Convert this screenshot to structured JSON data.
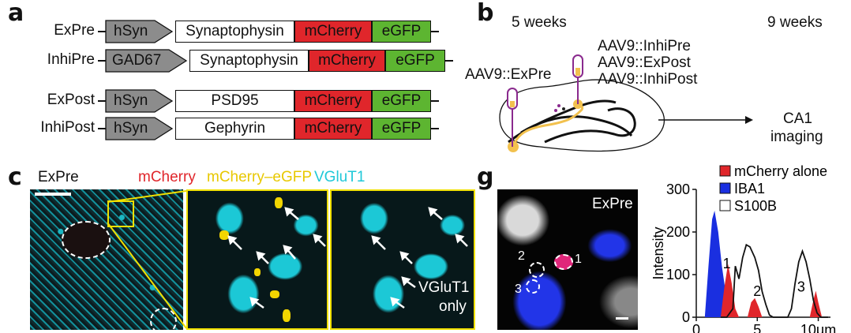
{
  "panel_a": {
    "label": "a",
    "rows": [
      {
        "name": "ExPre",
        "promoter": "hSyn",
        "protein": "Synaptophysin",
        "fp1": "mCherry",
        "fp2": "eGFP"
      },
      {
        "name": "InhiPre",
        "promoter": "GAD67",
        "protein": "Synaptophysin",
        "fp1": "mCherry",
        "fp2": "eGFP"
      },
      {
        "name": "ExPost",
        "promoter": "hSyn",
        "protein": "PSD95",
        "fp1": "mCherry",
        "fp2": "eGFP"
      },
      {
        "name": "InhiPost",
        "promoter": "hSyn",
        "protein": "Gephyrin",
        "fp1": "mCherry",
        "fp2": "eGFP"
      }
    ],
    "colors": {
      "promoter": "#8c8c8c",
      "mcherry": "#e0262b",
      "egfp": "#5db531"
    }
  },
  "panel_b": {
    "label": "b",
    "time1": "5 weeks",
    "time2": "9 weeks",
    "virus_left": "AAV9::ExPre",
    "virus_right": [
      "AAV9::InhiPre",
      "AAV9::ExPost",
      "AAV9::InhiPost"
    ],
    "outcome": [
      "CA1",
      "imaging"
    ]
  },
  "panel_c": {
    "label": "c",
    "title": "ExPre",
    "legend": [
      {
        "text": "mCherry",
        "color": "#e0262b"
      },
      {
        "text": "mCherry–eGFP",
        "color": "#e8c800"
      },
      {
        "text": "VGluT1",
        "color": "#20c8d8"
      }
    ],
    "annotation": [
      "VGluT1",
      "only"
    ]
  },
  "panel_g": {
    "label": "g",
    "title": "ExPre",
    "roi_labels": [
      "1",
      "2",
      "3"
    ]
  },
  "chart_data": {
    "type": "area",
    "ylabel": "Intensity",
    "xunit": "μm",
    "xlim": [
      0,
      11
    ],
    "ylim": [
      0,
      300
    ],
    "xticks": [
      0,
      5,
      10
    ],
    "yticks": [
      0,
      100,
      200,
      300
    ],
    "legend": [
      {
        "text": "mCherry alone",
        "color": "#e0262b"
      },
      {
        "text": "IBA1",
        "color": "#1a2fe0"
      },
      {
        "text": "S100B",
        "color": "#ffffff"
      }
    ],
    "peak_labels": [
      {
        "text": "1",
        "x": 2.5,
        "y": 115
      },
      {
        "text": "2",
        "x": 5.0,
        "y": 50
      },
      {
        "text": "3",
        "x": 8.6,
        "y": 60
      }
    ],
    "series": [
      {
        "name": "IBA1",
        "x": [
          0.7,
          1.0,
          1.3,
          1.5,
          1.8,
          2.1,
          2.4,
          2.7,
          2.9
        ],
        "values": [
          0,
          120,
          230,
          250,
          200,
          120,
          60,
          15,
          0
        ]
      },
      {
        "name": "mCherry alone",
        "x": [
          2.0,
          2.3,
          2.6,
          2.9,
          3.2,
          3.5
        ],
        "values": [
          0,
          70,
          125,
          80,
          20,
          0
        ]
      },
      {
        "name": "mCherry alone",
        "x": [
          4.2,
          4.5,
          4.8,
          5.1,
          5.4
        ],
        "values": [
          0,
          35,
          45,
          25,
          0
        ]
      },
      {
        "name": "mCherry alone",
        "x": [
          9.3,
          9.6,
          9.8,
          10.0,
          10.3
        ],
        "values": [
          0,
          40,
          62,
          35,
          0
        ]
      },
      {
        "name": "S100B",
        "x": [
          2.0,
          2.5,
          3.0,
          3.2,
          3.5,
          3.8,
          4.1,
          4.4,
          4.8,
          5.1,
          5.4,
          5.7,
          6.0,
          6.3,
          6.6,
          7.0,
          7.5,
          7.8,
          8.1,
          8.4,
          8.7,
          9.0,
          9.3,
          9.6,
          9.9,
          10.2,
          10.5,
          10.8
        ],
        "values": [
          0,
          0,
          20,
          120,
          90,
          140,
          170,
          165,
          140,
          110,
          60,
          30,
          5,
          0,
          0,
          0,
          0,
          20,
          80,
          130,
          155,
          130,
          90,
          40,
          10,
          0,
          0,
          0
        ]
      }
    ]
  }
}
